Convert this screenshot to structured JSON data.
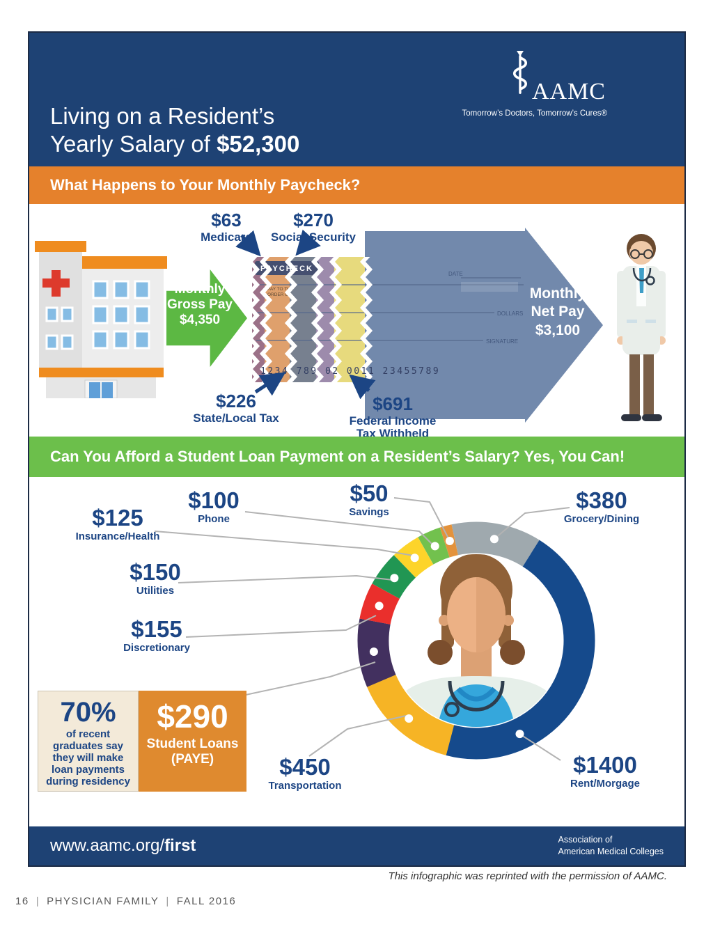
{
  "header": {
    "title_line1": "Living on a Resident’s",
    "title_line2_prefix": "Yearly Salary of ",
    "title_salary": "$52,300",
    "logo": {
      "name": "AAMC",
      "tagline": "Tomorrow’s Doctors, Tomorrow’s Cures®",
      "icon": "staff-of-asclepius-icon"
    }
  },
  "paycheck_section": {
    "heading": "What Happens to Your Monthly Paycheck?",
    "gross_arrow": [
      "Monthly",
      "Gross Pay",
      "$4,350"
    ],
    "net_arrow": [
      "Monthly",
      "Net Pay",
      "$3,100"
    ],
    "deductions": [
      {
        "value": "$63",
        "label": "Medicare"
      },
      {
        "value": "$270",
        "label": "Social Security"
      },
      {
        "value": "$226",
        "label": "State/Local Tax"
      },
      {
        "value": "$691",
        "label": "Federal Income Tax Withheld"
      }
    ],
    "check": {
      "title": "PAYCHECK",
      "pay_to_line1": "PAY TO THE",
      "pay_to_line2": "ORDER OF",
      "date_label": "DATE",
      "dollars_label": "DOLLARS",
      "signature_label": "SIGNATURE",
      "micr": "1234 789 02 0011 23455789"
    },
    "icons": [
      "hospital-icon",
      "male-doctor-icon"
    ]
  },
  "loan_section": {
    "heading": "Can You Afford a Student Loan Payment on a Resident’s Salary? Yes, You Can!",
    "stat_box": {
      "percent": "70%",
      "text": "of recent graduates say they will make loan payments during residency"
    },
    "loan_box": {
      "value": "$290",
      "label": "Student Loans (PAYE)"
    }
  },
  "chart_data": {
    "type": "pie",
    "subtype": "donut",
    "total": 3100,
    "start_angle_deg": -12,
    "legend_position": "around-labels-with-leader-lines",
    "center_image": "female-doctor-avatar",
    "segments": [
      {
        "label": "Grocery/Dining",
        "value": 380,
        "display": "$380",
        "color": "#9fa9ae"
      },
      {
        "label": "Rent/Morgage",
        "value": 1400,
        "display": "$1400",
        "color": "#154a8c"
      },
      {
        "label": "Transportation",
        "value": 450,
        "display": "$450",
        "color": "#f6b425"
      },
      {
        "label": "Student Loans (PAYE)",
        "value": 290,
        "display": "$290",
        "color": "#42305f"
      },
      {
        "label": "Discretionary",
        "value": 155,
        "display": "$155",
        "color": "#ea2f2c"
      },
      {
        "label": "Utilities",
        "value": 150,
        "display": "$150",
        "color": "#219653"
      },
      {
        "label": "Insurance/Health",
        "value": 125,
        "display": "$125",
        "color": "#fdd42a"
      },
      {
        "label": "Phone",
        "value": 100,
        "display": "$100",
        "color": "#72c14e"
      },
      {
        "label": "Savings",
        "value": 50,
        "display": "$50",
        "color": "#e3923c"
      }
    ]
  },
  "footer_bar": {
    "url_prefix": "www.aamc.org/",
    "url_bold": "first",
    "org_line1": "Association of",
    "org_line2": "American Medical Colleges"
  },
  "page": {
    "credit_line": "This infographic was reprinted with the permission of AAMC.",
    "footer": {
      "page_number": "16",
      "magazine": "PHYSICIAN FAMILY",
      "issue": "FALL 2016"
    }
  },
  "colors": {
    "header_navy": "#1e4274",
    "orange_bar": "#e5812c",
    "green_bar": "#6cbf4b",
    "green_arrow": "#5cb843",
    "net_arrow_blue": "#7289ac",
    "label_navy": "#1c4584",
    "stat_beige": "#f3ead9",
    "stat_orange": "#df8a2f"
  }
}
